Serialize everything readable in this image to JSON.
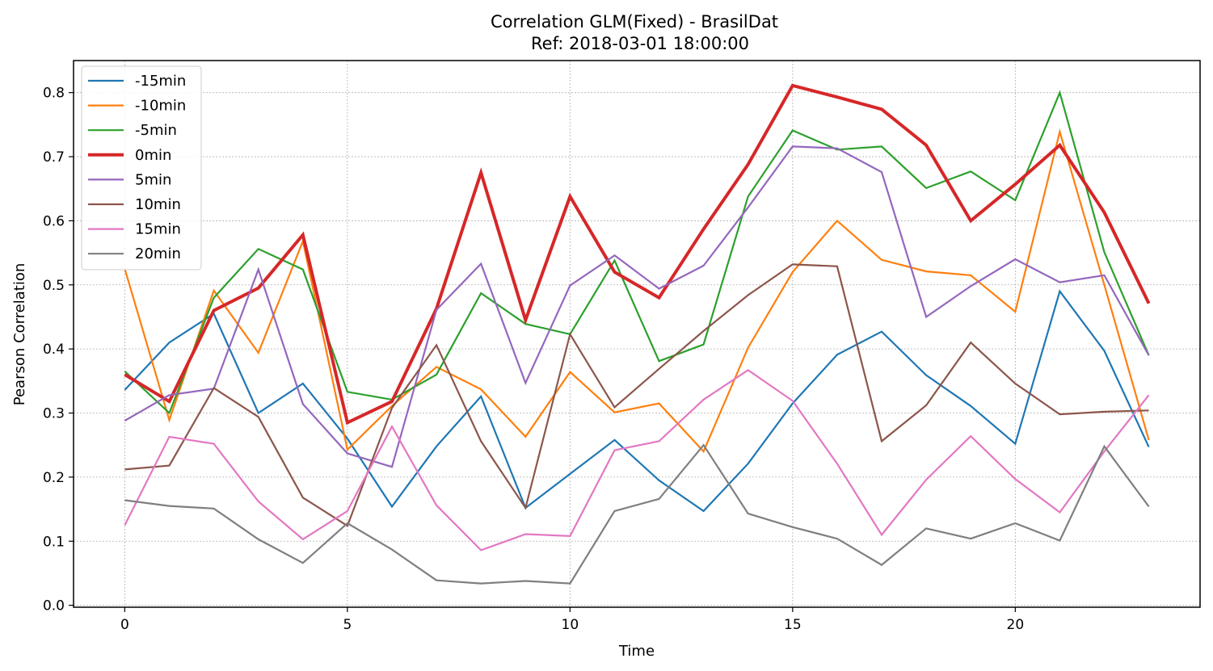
{
  "chart_data": {
    "type": "line",
    "title": "Correlation GLM(Fixed) - BrasilDat",
    "subtitle": "Ref: 2018-03-01 18:00:00",
    "xlabel": "Time",
    "ylabel": "Pearson Correlation",
    "xlim": [
      -1.15,
      24.15
    ],
    "ylim": [
      -0.003,
      0.85
    ],
    "xticks": [
      0,
      5,
      10,
      15,
      20
    ],
    "yticks": [
      0.0,
      0.1,
      0.2,
      0.3,
      0.4,
      0.5,
      0.6,
      0.7,
      0.8
    ],
    "xtick_labels": [
      "0",
      "5",
      "10",
      "15",
      "20"
    ],
    "ytick_labels": [
      "0.0",
      "0.1",
      "0.2",
      "0.3",
      "0.4",
      "0.5",
      "0.6",
      "0.7",
      "0.8"
    ],
    "grid": true,
    "legend_position": "top-left",
    "x": [
      0,
      1,
      2,
      3,
      4,
      5,
      6,
      7,
      8,
      9,
      10,
      11,
      12,
      13,
      14,
      15,
      16,
      17,
      18,
      19,
      20,
      21,
      22,
      23
    ],
    "series": [
      {
        "name": "-15min",
        "color": "#1f77b4",
        "bold": false,
        "values": [
          0.336,
          0.41,
          0.455,
          0.3,
          0.346,
          0.26,
          0.154,
          0.248,
          0.326,
          0.152,
          0.205,
          0.258,
          0.195,
          0.147,
          0.221,
          0.315,
          0.391,
          0.427,
          0.359,
          0.311,
          0.252,
          0.49,
          0.397,
          0.247
        ]
      },
      {
        "name": "-10min",
        "color": "#ff7f0e",
        "bold": false,
        "values": [
          0.525,
          0.289,
          0.491,
          0.394,
          0.568,
          0.243,
          0.311,
          0.372,
          0.337,
          0.263,
          0.364,
          0.301,
          0.315,
          0.24,
          0.402,
          0.52,
          0.6,
          0.539,
          0.521,
          0.515,
          0.458,
          0.739,
          0.5,
          0.258
        ]
      },
      {
        "name": "-5min",
        "color": "#2ca02c",
        "bold": false,
        "values": [
          0.365,
          0.3,
          0.48,
          0.556,
          0.524,
          0.333,
          0.321,
          0.36,
          0.487,
          0.439,
          0.423,
          0.538,
          0.381,
          0.407,
          0.638,
          0.741,
          0.711,
          0.716,
          0.651,
          0.677,
          0.632,
          0.8,
          0.551,
          0.39
        ]
      },
      {
        "name": "0min",
        "color": "#d62728",
        "bold": true,
        "values": [
          0.36,
          0.318,
          0.46,
          0.495,
          0.578,
          0.285,
          0.318,
          0.463,
          0.675,
          0.445,
          0.638,
          0.52,
          0.48,
          0.587,
          0.688,
          0.811,
          0.793,
          0.774,
          0.718,
          0.6,
          0.657,
          0.718,
          0.613,
          0.471
        ]
      },
      {
        "name": "5min",
        "color": "#9467bd",
        "bold": false,
        "values": [
          0.288,
          0.328,
          0.338,
          0.524,
          0.314,
          0.237,
          0.216,
          0.461,
          0.533,
          0.347,
          0.499,
          0.546,
          0.494,
          0.53,
          0.621,
          0.716,
          0.713,
          0.676,
          0.45,
          0.498,
          0.54,
          0.504,
          0.515,
          0.39
        ]
      },
      {
        "name": "10min",
        "color": "#8c564b",
        "bold": false,
        "values": [
          0.212,
          0.218,
          0.339,
          0.294,
          0.168,
          0.124,
          0.308,
          0.406,
          0.256,
          0.152,
          0.423,
          0.309,
          0.369,
          0.428,
          0.484,
          0.532,
          0.529,
          0.256,
          0.312,
          0.41,
          0.346,
          0.298,
          0.302,
          0.304
        ]
      },
      {
        "name": "15min",
        "color": "#e377c2",
        "bold": false,
        "values": [
          0.125,
          0.263,
          0.252,
          0.162,
          0.103,
          0.147,
          0.279,
          0.156,
          0.086,
          0.111,
          0.108,
          0.242,
          0.256,
          0.321,
          0.367,
          0.319,
          0.221,
          0.11,
          0.196,
          0.264,
          0.197,
          0.145,
          0.24,
          0.328
        ]
      },
      {
        "name": "20min",
        "color": "#7f7f7f",
        "bold": false,
        "values": [
          0.164,
          0.155,
          0.151,
          0.103,
          0.066,
          0.128,
          0.087,
          0.039,
          0.034,
          0.038,
          0.034,
          0.147,
          0.166,
          0.25,
          0.143,
          0.122,
          0.104,
          0.063,
          0.12,
          0.104,
          0.128,
          0.101,
          0.248,
          0.154
        ]
      }
    ]
  }
}
